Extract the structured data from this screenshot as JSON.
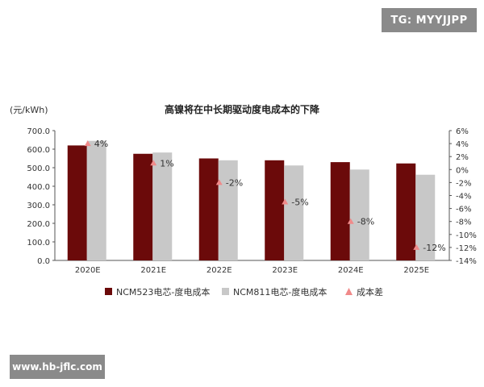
{
  "watermarks": {
    "top": "TG: MYYJJPP",
    "bottom": "www.hb-jflc.com"
  },
  "colors": {
    "ncm523": "#6b0a0a",
    "ncm811": "#c8c8c8",
    "marker": "#f08a8a"
  },
  "chart_data": {
    "type": "bar",
    "title": "高镍将在中长期驱动度电成本的下降",
    "ylabel": "(元/kWh)",
    "categories": [
      "2020E",
      "2021E",
      "2022E",
      "2023E",
      "2024E",
      "2025E"
    ],
    "series": [
      {
        "name": "NCM523电芯-度电成本",
        "values": [
          620,
          575,
          550,
          540,
          530,
          523
        ]
      },
      {
        "name": "NCM811电芯-度电成本",
        "values": [
          645,
          582,
          540,
          512,
          490,
          462
        ]
      }
    ],
    "secondary_series": {
      "name": "成本差",
      "type": "scatter",
      "values": [
        4,
        1,
        -2,
        -5,
        -8,
        -12
      ],
      "labels": [
        "4%",
        "1%",
        "-2%",
        "-5%",
        "-8%",
        "-12%"
      ]
    },
    "ylim": [
      0,
      700
    ],
    "yticks": [
      "0.0",
      "100.0",
      "200.0",
      "300.0",
      "400.0",
      "500.0",
      "600.0",
      "700.0"
    ],
    "y2lim": [
      -14,
      6
    ],
    "y2ticks": [
      "6%",
      "4%",
      "2%",
      "0%",
      "-2%",
      "-4%",
      "-6%",
      "-8%",
      "-10%",
      "-12%",
      "-14%"
    ],
    "legend_placement": "bottom"
  }
}
